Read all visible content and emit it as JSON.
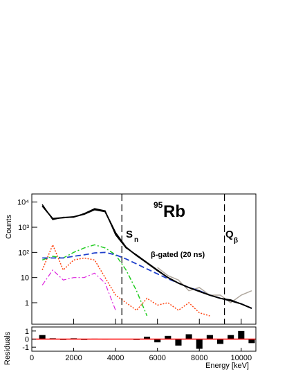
{
  "chart_data": [
    {
      "type": "line",
      "log_y": true,
      "title_mass": "95",
      "title_element": "Rb",
      "y_label": "Counts",
      "annotations": {
        "sn_main": "S",
        "sn_sub": "n",
        "q_main": "Q",
        "q_sub": "β",
        "gate": "β-gated (20 ns)"
      },
      "vlines": [
        4300,
        9200
      ],
      "x": [
        0,
        500,
        1000,
        1500,
        2000,
        2500,
        3000,
        3500,
        4000,
        4500,
        5000,
        5500,
        6000,
        6500,
        7000,
        7500,
        8000,
        8500,
        9000,
        9500,
        10000,
        10500
      ],
      "xlim": [
        0,
        10700
      ],
      "xticks": [
        0,
        2000,
        4000,
        6000,
        8000,
        10000
      ],
      "ylim": [
        0.14,
        21000
      ],
      "yticks": [
        1,
        10,
        {
          "value": 100,
          "label": "10²"
        },
        {
          "value": 1000,
          "label": "10³"
        },
        {
          "value": 10000,
          "label": "10⁴"
        }
      ],
      "series": [
        {
          "color": "#b0a89e",
          "style": "solid",
          "width": 1.5,
          "values": [
            null,
            null,
            null,
            null,
            null,
            null,
            null,
            null,
            null,
            null,
            null,
            null,
            25,
            12,
            8,
            3,
            4,
            2,
            2,
            1,
            2,
            3
          ]
        },
        {
          "color": "#000000",
          "style": "solid",
          "width": 1.5,
          "values": [
            null,
            8000,
            2000,
            2500,
            2500,
            3500,
            5500,
            4500,
            500,
            150,
            80,
            40,
            20,
            10,
            6,
            4,
            3,
            2,
            1.5,
            1.3,
            0.9,
            0.6
          ]
        },
        {
          "color": "#ff4411",
          "style": "dotted",
          "width": 1.5,
          "values": [
            null,
            20,
            200,
            20,
            50,
            60,
            50,
            10,
            2,
            1,
            0.5,
            1.5,
            0.8,
            1,
            0.5,
            1,
            0.4,
            0.3,
            null,
            null,
            null,
            null
          ]
        },
        {
          "color": "#dd22dd",
          "style": "dashdot",
          "width": 1.2,
          "values": [
            null,
            5,
            20,
            8,
            10,
            10,
            15,
            6,
            0.5,
            null,
            null,
            null,
            null,
            null,
            null,
            null,
            null,
            null,
            null,
            null,
            null,
            null
          ]
        },
        {
          "color": "#22cc22",
          "style": "dashdot",
          "width": 1.5,
          "values": [
            null,
            50,
            70,
            60,
            100,
            150,
            200,
            150,
            80,
            20,
            3,
            0.3,
            null,
            null,
            null,
            null,
            null,
            null,
            null,
            null,
            null,
            null
          ]
        },
        {
          "color": "#1f3fcc",
          "style": "dashed",
          "width": 1.8,
          "values": [
            null,
            60,
            60,
            60,
            70,
            80,
            95,
            100,
            80,
            55,
            35,
            22,
            14,
            9,
            6,
            4,
            3,
            2,
            1.5,
            1.2,
            0.9,
            0.6
          ]
        },
        {
          "color": "#000000",
          "style": "solid",
          "width": 2,
          "values": [
            null,
            7000,
            2200,
            2400,
            2600,
            3300,
            5000,
            4200,
            600,
            160,
            75,
            38,
            19,
            10,
            6,
            4,
            2.8,
            2,
            1.5,
            1.2,
            0.9,
            0.6
          ]
        }
      ]
    },
    {
      "type": "bar",
      "y_label": "Residuals",
      "x_label": "Energy [keV]",
      "reference_line": 0,
      "reference_color": "#ff0000",
      "x": [
        0,
        500,
        1000,
        1500,
        2000,
        2500,
        3000,
        3500,
        4000,
        4500,
        5000,
        5500,
        6000,
        6500,
        7000,
        7500,
        8000,
        8500,
        9000,
        9500,
        10000,
        10500
      ],
      "values": [
        null,
        0.5,
        0.1,
        -0.1,
        0.1,
        -0.1,
        0.05,
        -0.05,
        0,
        0,
        -0.1,
        0.3,
        -0.4,
        0.4,
        -0.8,
        0.6,
        -1.2,
        0.5,
        -0.6,
        0.5,
        1,
        -0.5
      ],
      "color": "#000000",
      "xlim": [
        0,
        10700
      ],
      "xticks": [
        0,
        2000,
        4000,
        6000,
        8000,
        10000
      ],
      "ylim": [
        -1.5,
        1.5
      ],
      "yticks": [
        -1,
        0,
        1
      ]
    }
  ]
}
